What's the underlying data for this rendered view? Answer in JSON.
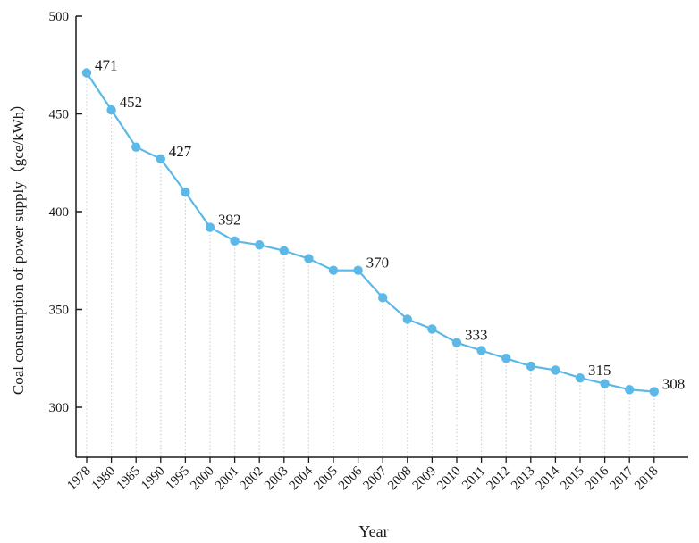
{
  "chart_data": {
    "type": "line",
    "title": "",
    "xlabel": "Year",
    "ylabel": "Coal consumption of power supply（gce/kWh）",
    "ylim": [
      300,
      500
    ],
    "yticks": [
      300,
      350,
      400,
      450,
      500
    ],
    "grid": "vertical dotted drop lines at each point",
    "categories": [
      "1978",
      "1980",
      "1985",
      "1990",
      "1995",
      "2000",
      "2001",
      "2002",
      "2003",
      "2004",
      "2005",
      "2006",
      "2007",
      "2008",
      "2009",
      "2010",
      "2011",
      "2012",
      "2013",
      "2014",
      "2015",
      "2016",
      "2017",
      "2018"
    ],
    "series": [
      {
        "values": [
          471,
          452,
          433,
          427,
          410,
          392,
          385,
          383,
          380,
          376,
          370,
          370,
          356,
          345,
          340,
          333,
          329,
          325,
          321,
          319,
          315,
          312,
          309,
          308
        ]
      }
    ],
    "data_labels": [
      {
        "category": "1978",
        "text": "471"
      },
      {
        "category": "1980",
        "text": "452"
      },
      {
        "category": "1990",
        "text": "427"
      },
      {
        "category": "2000",
        "text": "392"
      },
      {
        "category": "2006",
        "text": "370"
      },
      {
        "category": "2010",
        "text": "333"
      },
      {
        "category": "2015",
        "text": "315"
      },
      {
        "category": "2018",
        "text": "308"
      }
    ],
    "colors": {
      "line": "#5cb8e6",
      "marker": "#5cb8e6",
      "axis": "#1a1a1a",
      "dropline": "#c8c8c8"
    }
  }
}
